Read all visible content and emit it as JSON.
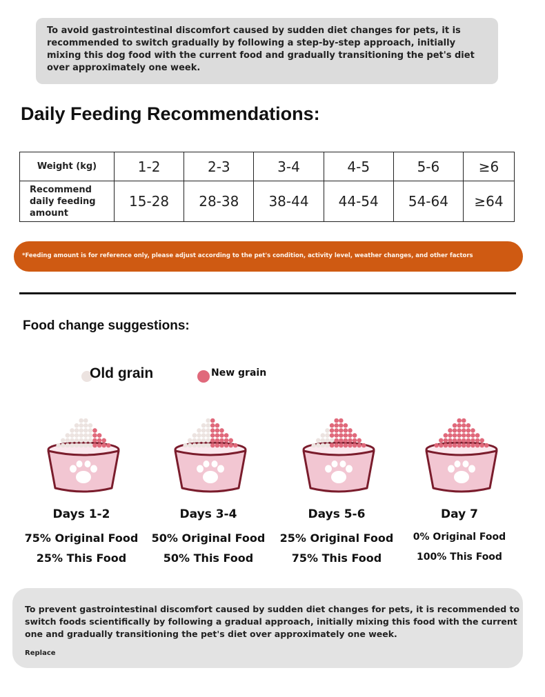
{
  "intro_note": "To avoid gastrointestinal discomfort caused by sudden diet changes for pets, it is recommended to switch gradually by following a step-by-step approach, initially mixing this dog food with the current food and gradually transitioning the pet's diet over approximately one week.",
  "feeding_title": "Daily Feeding Recommendations:",
  "table": {
    "row1_label": "Weight (kg)",
    "row2_label": "Recommend daily feeding amount",
    "weights": [
      "1-2",
      "2-3",
      "3-4",
      "4-5",
      "5-6",
      "≥6"
    ],
    "amounts": [
      "15-28",
      "28-38",
      "38-44",
      "44-54",
      "54-64",
      "≥64"
    ]
  },
  "disclaimer": "*Feeding amount is for reference only, please adjust according to the pet's condition, activity level, weather changes, and other factors",
  "food_change_title": "Food change suggestions:",
  "legend": {
    "old": "Old grain",
    "new": "New grain",
    "old_color": "#ece3e0",
    "new_color": "#e0697b"
  },
  "stages": [
    {
      "day": "Days 1-2",
      "original": "75% Original Food",
      "this": "25% This Food",
      "new_share": 0.25
    },
    {
      "day": "Days 3-4",
      "original": "50% Original Food",
      "this": "50% This Food",
      "new_share": 0.5
    },
    {
      "day": "Days 5-6",
      "original": "25% Original Food",
      "this": "75% This Food",
      "new_share": 0.75
    },
    {
      "day": "Day 7",
      "original": "0% Original Food",
      "this": "100% This Food",
      "new_share": 1.0
    }
  ],
  "bottom_note": "To prevent gastrointestinal discomfort caused by sudden diet changes for pets, it is recommended to switch foods scientifically by following a gradual approach, initially mixing this food with the current one and gradually transitioning the pet's diet over approximately one week.",
  "bottom_small": "Replace",
  "colors": {
    "orange": "#cf5a12",
    "bowl_pink": "#f2c6d2",
    "bowl_outline": "#7a1c2c"
  }
}
